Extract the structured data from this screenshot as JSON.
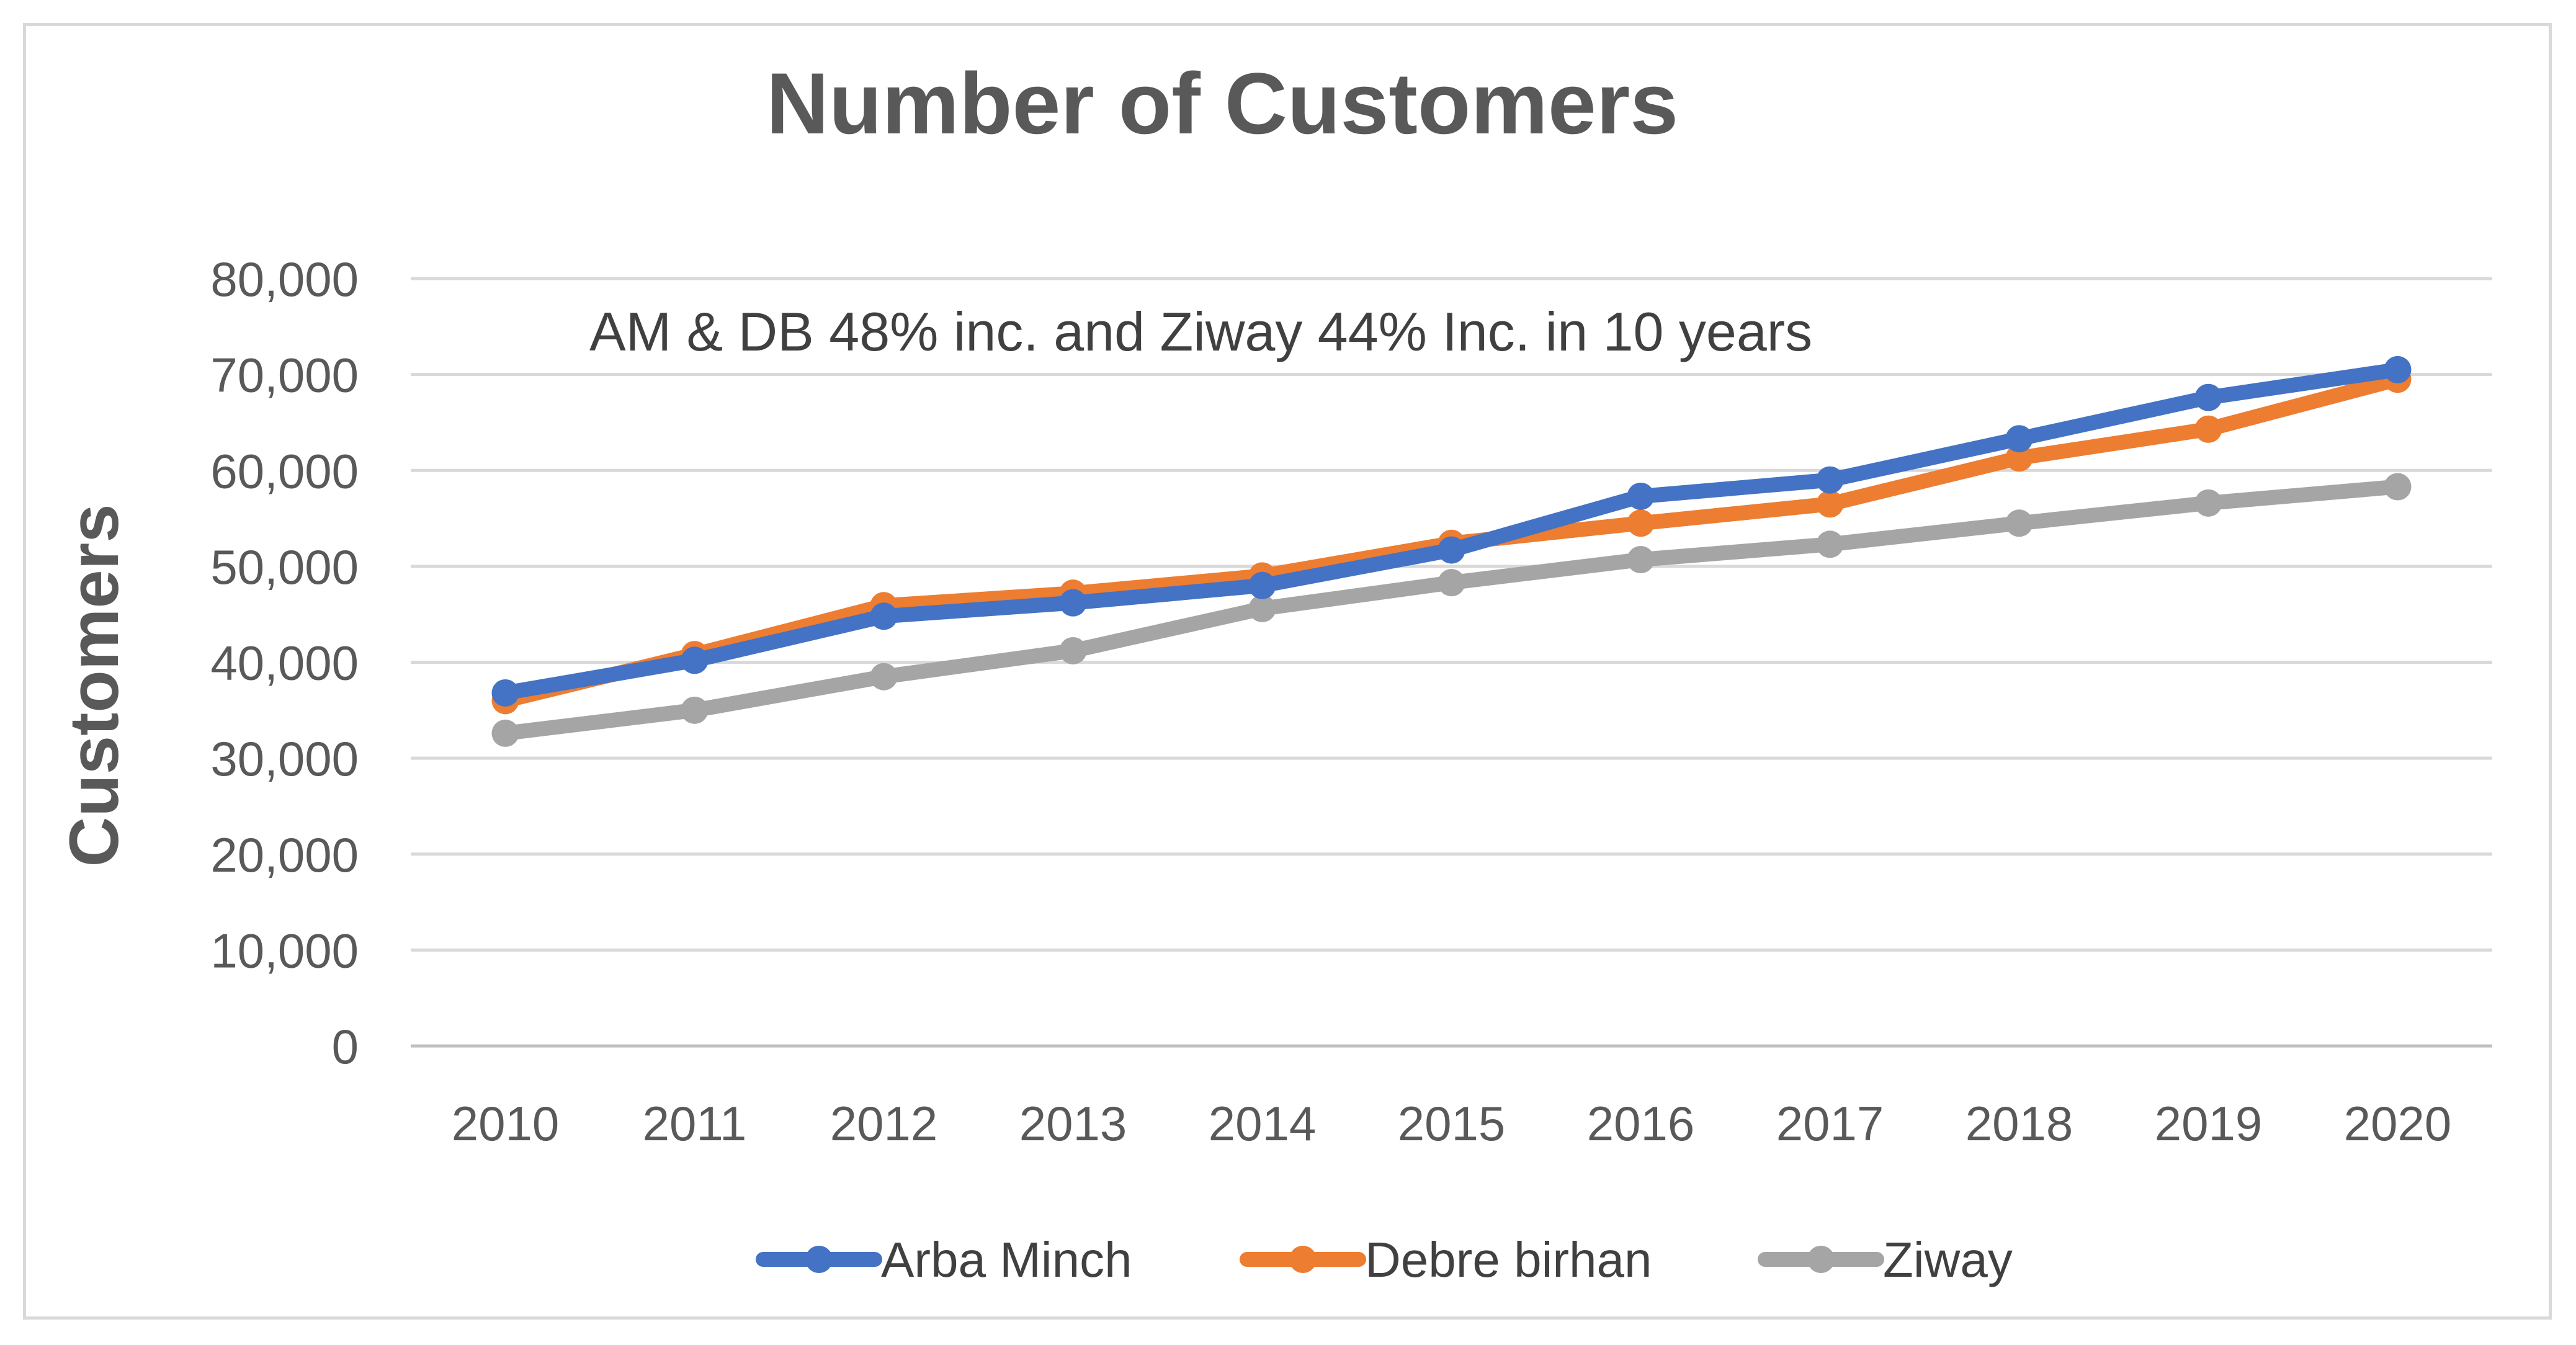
{
  "chart_data": {
    "type": "line",
    "title": "Number of Customers",
    "xlabel": "",
    "ylabel": "Customers",
    "annotation": "AM & DB 48% inc. and Ziway 44% Inc. in 10 years",
    "categories": [
      "2010",
      "2011",
      "2012",
      "2013",
      "2014",
      "2015",
      "2016",
      "2017",
      "2018",
      "2019",
      "2020"
    ],
    "ylim": [
      0,
      80000
    ],
    "yticks": [
      0,
      10000,
      20000,
      30000,
      40000,
      50000,
      60000,
      70000,
      80000
    ],
    "ytick_labels": [
      "0",
      "10,000",
      "20,000",
      "30,000",
      "40,000",
      "50,000",
      "60,000",
      "70,000",
      "80,000"
    ],
    "grid": true,
    "legend_position": "bottom",
    "series": [
      {
        "name": "Arba Minch",
        "color": "#4472c4",
        "values": [
          36800,
          40200,
          44800,
          46200,
          48000,
          51700,
          57300,
          59000,
          63300,
          67600,
          70500
        ]
      },
      {
        "name": "Debre birhan",
        "color": "#ed7d31",
        "values": [
          36000,
          40800,
          45900,
          47200,
          49000,
          52400,
          54500,
          56500,
          61300,
          64300,
          69500
        ]
      },
      {
        "name": "Ziway",
        "color": "#a5a5a5",
        "values": [
          32600,
          35000,
          38500,
          41200,
          45600,
          48300,
          50700,
          52300,
          54500,
          56600,
          58300
        ]
      }
    ]
  }
}
